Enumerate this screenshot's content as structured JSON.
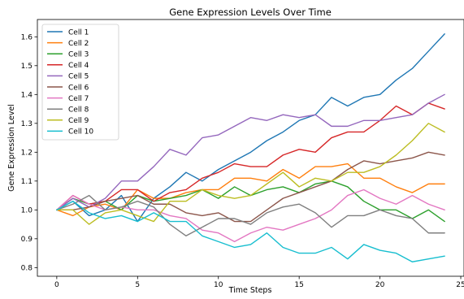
{
  "chart_data": {
    "type": "line",
    "title": "Gene Expression Levels Over Time",
    "xlabel": "Time Steps",
    "ylabel": "Gene Expression Level",
    "xlim": [
      -1.2,
      25.2
    ],
    "ylim": [
      0.77,
      1.66
    ],
    "xticks": [
      0,
      5,
      10,
      15,
      20,
      25
    ],
    "yticks": [
      0.8,
      0.9,
      1.0,
      1.1,
      1.2,
      1.3,
      1.4,
      1.5,
      1.6
    ],
    "ytick_labels": [
      "0.8",
      "0.9",
      "1.0",
      "1.1",
      "1.2",
      "1.3",
      "1.4",
      "1.5",
      "1.6"
    ],
    "grid": false,
    "legend_position": "upper-left",
    "x": [
      0,
      1,
      2,
      3,
      4,
      5,
      6,
      7,
      8,
      9,
      10,
      11,
      12,
      13,
      14,
      15,
      16,
      17,
      18,
      19,
      20,
      21,
      22,
      23,
      24
    ],
    "series": [
      {
        "name": "Cell 1",
        "color": "#1f77b4",
        "values": [
          1.0,
          1.03,
          0.98,
          1.0,
          1.05,
          0.96,
          1.04,
          1.08,
          1.13,
          1.1,
          1.14,
          1.17,
          1.2,
          1.24,
          1.27,
          1.31,
          1.33,
          1.39,
          1.36,
          1.39,
          1.4,
          1.45,
          1.49,
          1.55,
          1.61
        ]
      },
      {
        "name": "Cell 2",
        "color": "#ff7f0e",
        "values": [
          1.0,
          0.98,
          1.01,
          1.02,
          1.0,
          1.07,
          1.04,
          1.04,
          1.06,
          1.07,
          1.07,
          1.11,
          1.11,
          1.1,
          1.14,
          1.11,
          1.15,
          1.15,
          1.16,
          1.11,
          1.11,
          1.08,
          1.06,
          1.09,
          1.09
        ]
      },
      {
        "name": "Cell 3",
        "color": "#2ca02c",
        "values": [
          1.0,
          1.04,
          1.02,
          1.03,
          1.0,
          1.05,
          1.03,
          1.04,
          1.05,
          1.07,
          1.04,
          1.08,
          1.05,
          1.07,
          1.08,
          1.06,
          1.09,
          1.1,
          1.08,
          1.03,
          1.0,
          1.0,
          0.97,
          1.0,
          0.96
        ]
      },
      {
        "name": "Cell 4",
        "color": "#d62728",
        "values": [
          1.0,
          1.05,
          1.02,
          1.03,
          1.07,
          1.07,
          1.03,
          1.06,
          1.07,
          1.11,
          1.13,
          1.16,
          1.15,
          1.15,
          1.19,
          1.21,
          1.2,
          1.25,
          1.27,
          1.27,
          1.31,
          1.36,
          1.33,
          1.37,
          1.35
        ]
      },
      {
        "name": "Cell 5",
        "color": "#9467bd",
        "values": [
          1.0,
          1.04,
          1.01,
          1.04,
          1.1,
          1.1,
          1.15,
          1.21,
          1.19,
          1.25,
          1.26,
          1.29,
          1.32,
          1.31,
          1.33,
          1.32,
          1.33,
          1.29,
          1.29,
          1.31,
          1.31,
          1.32,
          1.33,
          1.37,
          1.4
        ]
      },
      {
        "name": "Cell 6",
        "color": "#8c564b",
        "values": [
          1.0,
          1.0,
          1.01,
          1.03,
          1.04,
          1.05,
          1.02,
          1.02,
          0.99,
          0.98,
          0.99,
          0.96,
          0.96,
          1.0,
          1.04,
          1.06,
          1.08,
          1.1,
          1.14,
          1.17,
          1.16,
          1.17,
          1.18,
          1.2,
          1.19
        ]
      },
      {
        "name": "Cell 7",
        "color": "#e377c2",
        "values": [
          1.0,
          1.05,
          1.02,
          1.0,
          1.01,
          1.0,
          1.0,
          0.98,
          0.97,
          0.93,
          0.92,
          0.89,
          0.92,
          0.94,
          0.93,
          0.95,
          0.97,
          1.0,
          1.05,
          1.07,
          1.04,
          1.02,
          1.05,
          1.02,
          1.0
        ]
      },
      {
        "name": "Cell 8",
        "color": "#7f7f7f",
        "values": [
          1.0,
          1.02,
          1.05,
          1.0,
          1.01,
          1.03,
          1.01,
          0.95,
          0.91,
          0.94,
          0.97,
          0.97,
          0.95,
          0.99,
          1.01,
          1.02,
          0.99,
          0.94,
          0.98,
          0.98,
          1.0,
          0.98,
          0.97,
          0.92,
          0.92
        ]
      },
      {
        "name": "Cell 9",
        "color": "#bcbd22",
        "values": [
          1.0,
          1.0,
          0.95,
          0.99,
          1.0,
          0.98,
          0.96,
          1.03,
          1.03,
          1.07,
          1.05,
          1.04,
          1.05,
          1.09,
          1.13,
          1.08,
          1.11,
          1.1,
          1.13,
          1.13,
          1.15,
          1.19,
          1.24,
          1.3,
          1.27
        ]
      },
      {
        "name": "Cell 10",
        "color": "#17becf",
        "values": [
          1.0,
          1.03,
          0.99,
          0.97,
          0.98,
          0.96,
          0.99,
          0.96,
          0.96,
          0.91,
          0.89,
          0.87,
          0.88,
          0.92,
          0.87,
          0.85,
          0.85,
          0.87,
          0.83,
          0.88,
          0.86,
          0.85,
          0.82,
          0.83,
          0.84
        ]
      }
    ]
  }
}
